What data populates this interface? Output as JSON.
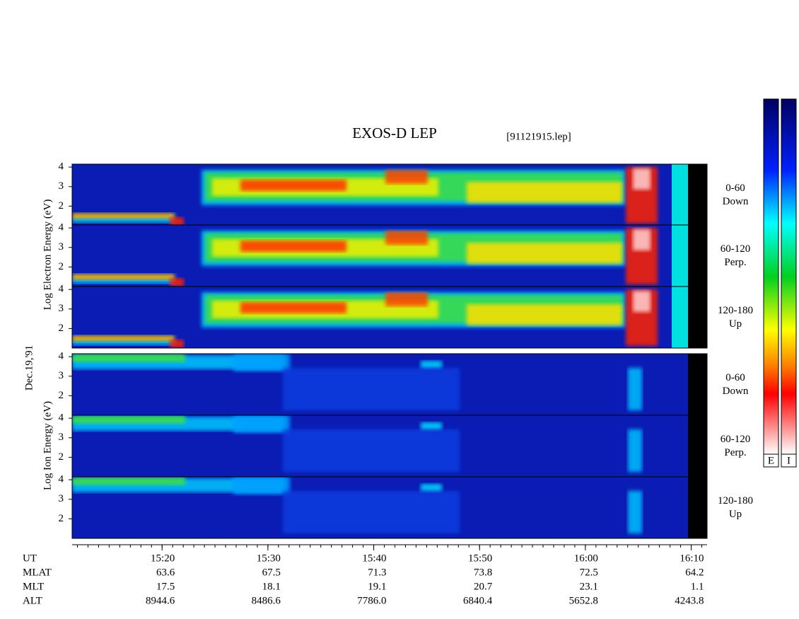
{
  "chart_data": {
    "type": "spectrogram",
    "title": "EXOS-D LEP",
    "subtitle": "[91121915.lep]",
    "date_label": "Dec.19,'91",
    "electron_axis_label": "Log Electron Energy (eV)",
    "ion_axis_label": "Log Ion Energy (eV)",
    "xlim": [
      911.5,
      971.5
    ],
    "xticks": [
      {
        "value": 920,
        "label": "15:20"
      },
      {
        "value": 930,
        "label": "15:30"
      },
      {
        "value": 940,
        "label": "15:40"
      },
      {
        "value": 950,
        "label": "15:50"
      },
      {
        "value": 960,
        "label": "16:00"
      },
      {
        "value": 970,
        "label": "16:10"
      }
    ],
    "ylim": [
      1,
      4.15
    ],
    "yticks": [
      2,
      3,
      4
    ],
    "panels": [
      {
        "range": "0-60",
        "direction": "Down"
      },
      {
        "range": "60-120",
        "direction": "Perp."
      },
      {
        "range": "120-180",
        "direction": "Up"
      },
      {
        "range": "0-60",
        "direction": "Down"
      },
      {
        "range": "60-120",
        "direction": "Perp."
      },
      {
        "range": "120-180",
        "direction": "Up"
      }
    ],
    "colorbars": [
      "E",
      "I"
    ],
    "ephemeris": [
      {
        "name": "UT"
      },
      {
        "name": "MLAT",
        "values": [
          "63.6",
          "67.5",
          "71.3",
          "73.8",
          "72.5",
          "64.2"
        ]
      },
      {
        "name": "MLT",
        "values": [
          "17.5",
          "18.1",
          "19.1",
          "20.7",
          "23.1",
          "1.1"
        ]
      },
      {
        "name": "ALT",
        "values": [
          "8944.6",
          "8486.6",
          "7786.0",
          "6840.4",
          "5652.8",
          "4243.8"
        ]
      }
    ]
  }
}
